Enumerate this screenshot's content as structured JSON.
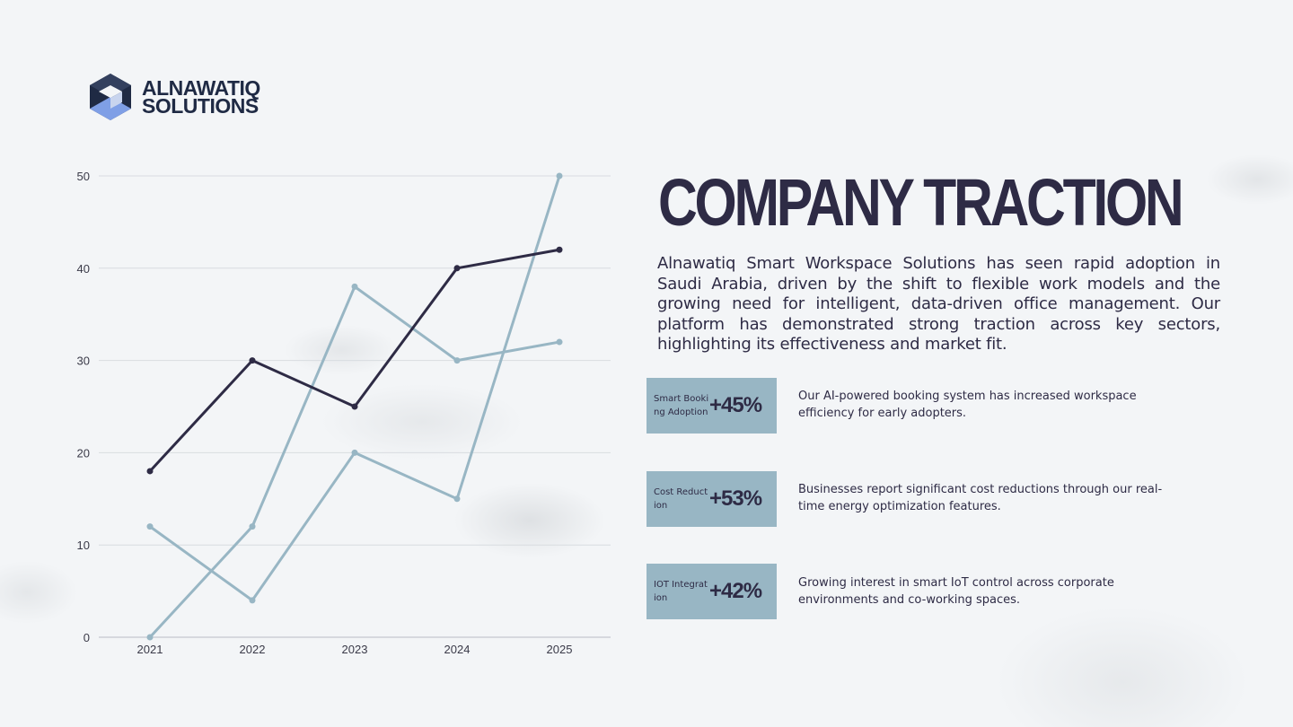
{
  "logo": {
    "line1": "ALNAWATIQ",
    "line2": "SOLUTIONS",
    "icon": "hexagon-logo-icon"
  },
  "heading": {
    "title": "COMPANY TRACTION"
  },
  "intro": "Alnawatiq Smart Workspace Solutions has seen rapid adoption in Saudi Arabia, driven by the shift to flexible work models and the growing need for intelligent, data-driven office management. Our platform has demonstrated strong traction across key sectors, highlighting its effectiveness and market fit.",
  "stats": [
    {
      "label": "Smart Booking Adoption",
      "value": "+45%",
      "description": "Our AI-powered booking system has increased workspace efficiency for early adopters."
    },
    {
      "label": "Cost Reduction",
      "value": "+53%",
      "description": "Businesses report significant cost reductions through our real-time energy optimization features."
    },
    {
      "label": "IOT Integration",
      "value": "+42%",
      "description": "Growing interest in smart IoT control across corporate environments and co-working spaces."
    }
  ],
  "colors": {
    "dark_series": "#2e2b45",
    "light_series": "#98b6c4",
    "box": "#98b6c4",
    "title": "#2e2b45"
  },
  "chart_data": {
    "type": "line",
    "categories": [
      "2021",
      "2022",
      "2023",
      "2024",
      "2025"
    ],
    "series": [
      {
        "values": [
          18,
          30,
          25,
          40,
          42
        ],
        "color": "#2e2b45"
      },
      {
        "values": [
          0,
          12,
          38,
          30,
          32
        ],
        "color": "#98b6c4"
      },
      {
        "values": [
          12,
          4,
          20,
          15,
          50
        ],
        "color": "#98b6c4"
      }
    ],
    "yticks": [
      0,
      10,
      20,
      30,
      40,
      50
    ],
    "ylim": [
      0,
      50
    ],
    "grid": true,
    "legend": "none"
  }
}
